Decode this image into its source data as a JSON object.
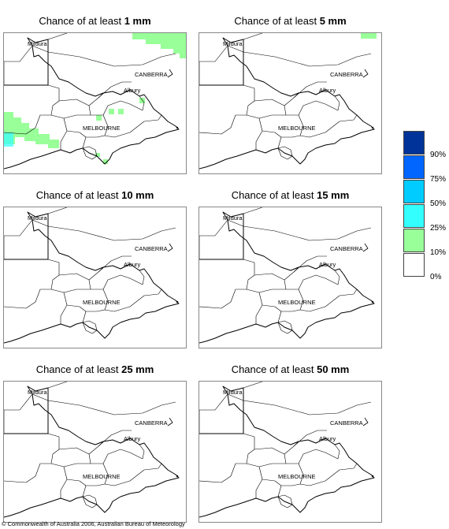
{
  "panels": [
    {
      "title_prefix": "Chance of at least ",
      "title_value": "1 mm"
    },
    {
      "title_prefix": "Chance of at least ",
      "title_value": "5 mm"
    },
    {
      "title_prefix": "Chance of at least ",
      "title_value": "10 mm"
    },
    {
      "title_prefix": "Chance of at least ",
      "title_value": "15 mm"
    },
    {
      "title_prefix": "Chance of at least ",
      "title_value": "25 mm"
    },
    {
      "title_prefix": "Chance of at least ",
      "title_value": "50 mm"
    }
  ],
  "map_labels": {
    "mildura": "Mildura",
    "canberra": "CANBERRA",
    "albury": "Albury",
    "melbourne": "MELBOURNE"
  },
  "legend": {
    "colors": [
      "#003399",
      "#0066ff",
      "#00ccff",
      "#33ffff",
      "#99ff99",
      "#ffffff"
    ],
    "ticks": [
      "90%",
      "75%",
      "50%",
      "25%",
      "10%",
      "0%"
    ]
  },
  "copyright": "© Commonwealth of Australia 2006, Australian Bureau of Meteorology"
}
